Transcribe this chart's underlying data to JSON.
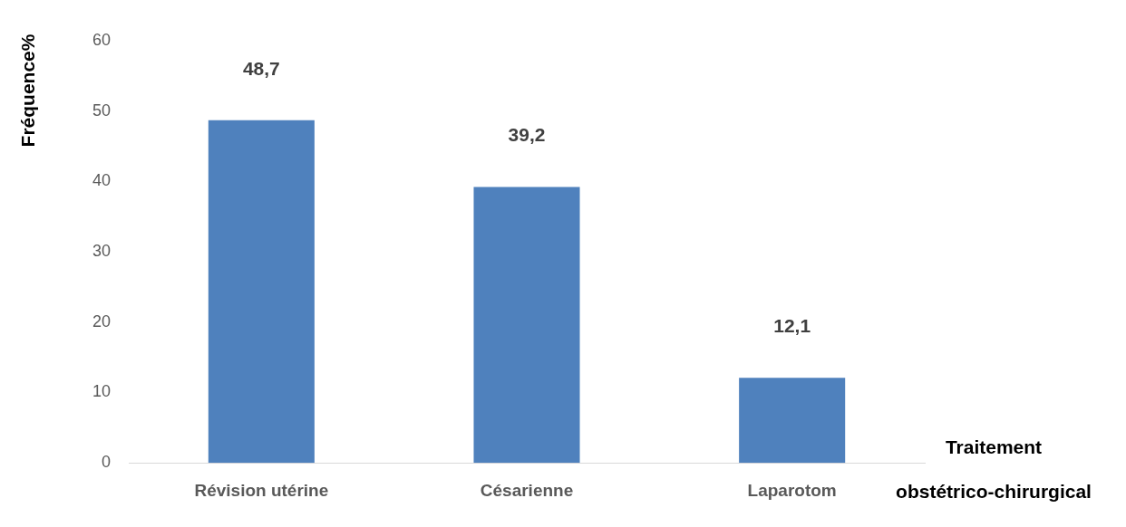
{
  "chart_data": {
    "type": "bar",
    "xlabel": "Traitement obstétrico-chirurgical",
    "ylabel": "Fréquence%",
    "categories": [
      "Révision utérine",
      "Césarienne",
      "Laparotom"
    ],
    "values": [
      48.7,
      39.2,
      12.1
    ],
    "color": "#4f81bd",
    "value_labels": [
      "48,7",
      "39,2",
      "12,1"
    ],
    "ylim": [
      0,
      60
    ],
    "yticks": [
      0,
      10,
      20,
      30,
      40,
      50,
      60
    ],
    "grid": false,
    "legend": false
  }
}
